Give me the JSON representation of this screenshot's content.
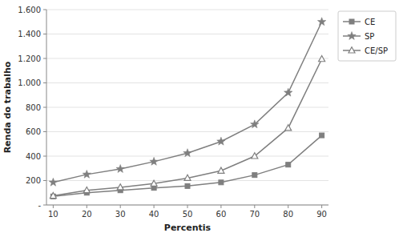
{
  "chart_data": {
    "type": "line",
    "xlabel": "Percentis",
    "ylabel": "Renda do trabalho",
    "x": [
      10,
      20,
      30,
      40,
      50,
      60,
      70,
      80,
      90
    ],
    "series": [
      {
        "name": "CE",
        "color": "#7f7f7f",
        "marker": "square",
        "values": [
          70,
          100,
          120,
          140,
          155,
          185,
          245,
          330,
          570
        ]
      },
      {
        "name": "SP",
        "color": "#7f7f7f",
        "marker": "star",
        "values": [
          185,
          250,
          295,
          355,
          425,
          520,
          660,
          920,
          1500
        ]
      },
      {
        "name": "CE/SP",
        "color": "#7f7f7f",
        "marker": "triangle",
        "values": [
          75,
          120,
          145,
          175,
          220,
          280,
          400,
          630,
          1195
        ]
      }
    ],
    "xlim": [
      8,
      92
    ],
    "xticks": [
      10,
      20,
      30,
      40,
      50,
      60,
      70,
      80,
      90
    ],
    "ylim": [
      0,
      1600
    ],
    "yticks": [
      {
        "value": 0,
        "label": "-"
      },
      200,
      400,
      600,
      800,
      {
        "value": 1000,
        "label": "1.000"
      },
      {
        "value": 1200,
        "label": "1.200"
      },
      {
        "value": 1400,
        "label": "1.400"
      },
      {
        "value": 1600,
        "label": "1.600"
      }
    ],
    "grid": "y",
    "legend": "right"
  }
}
